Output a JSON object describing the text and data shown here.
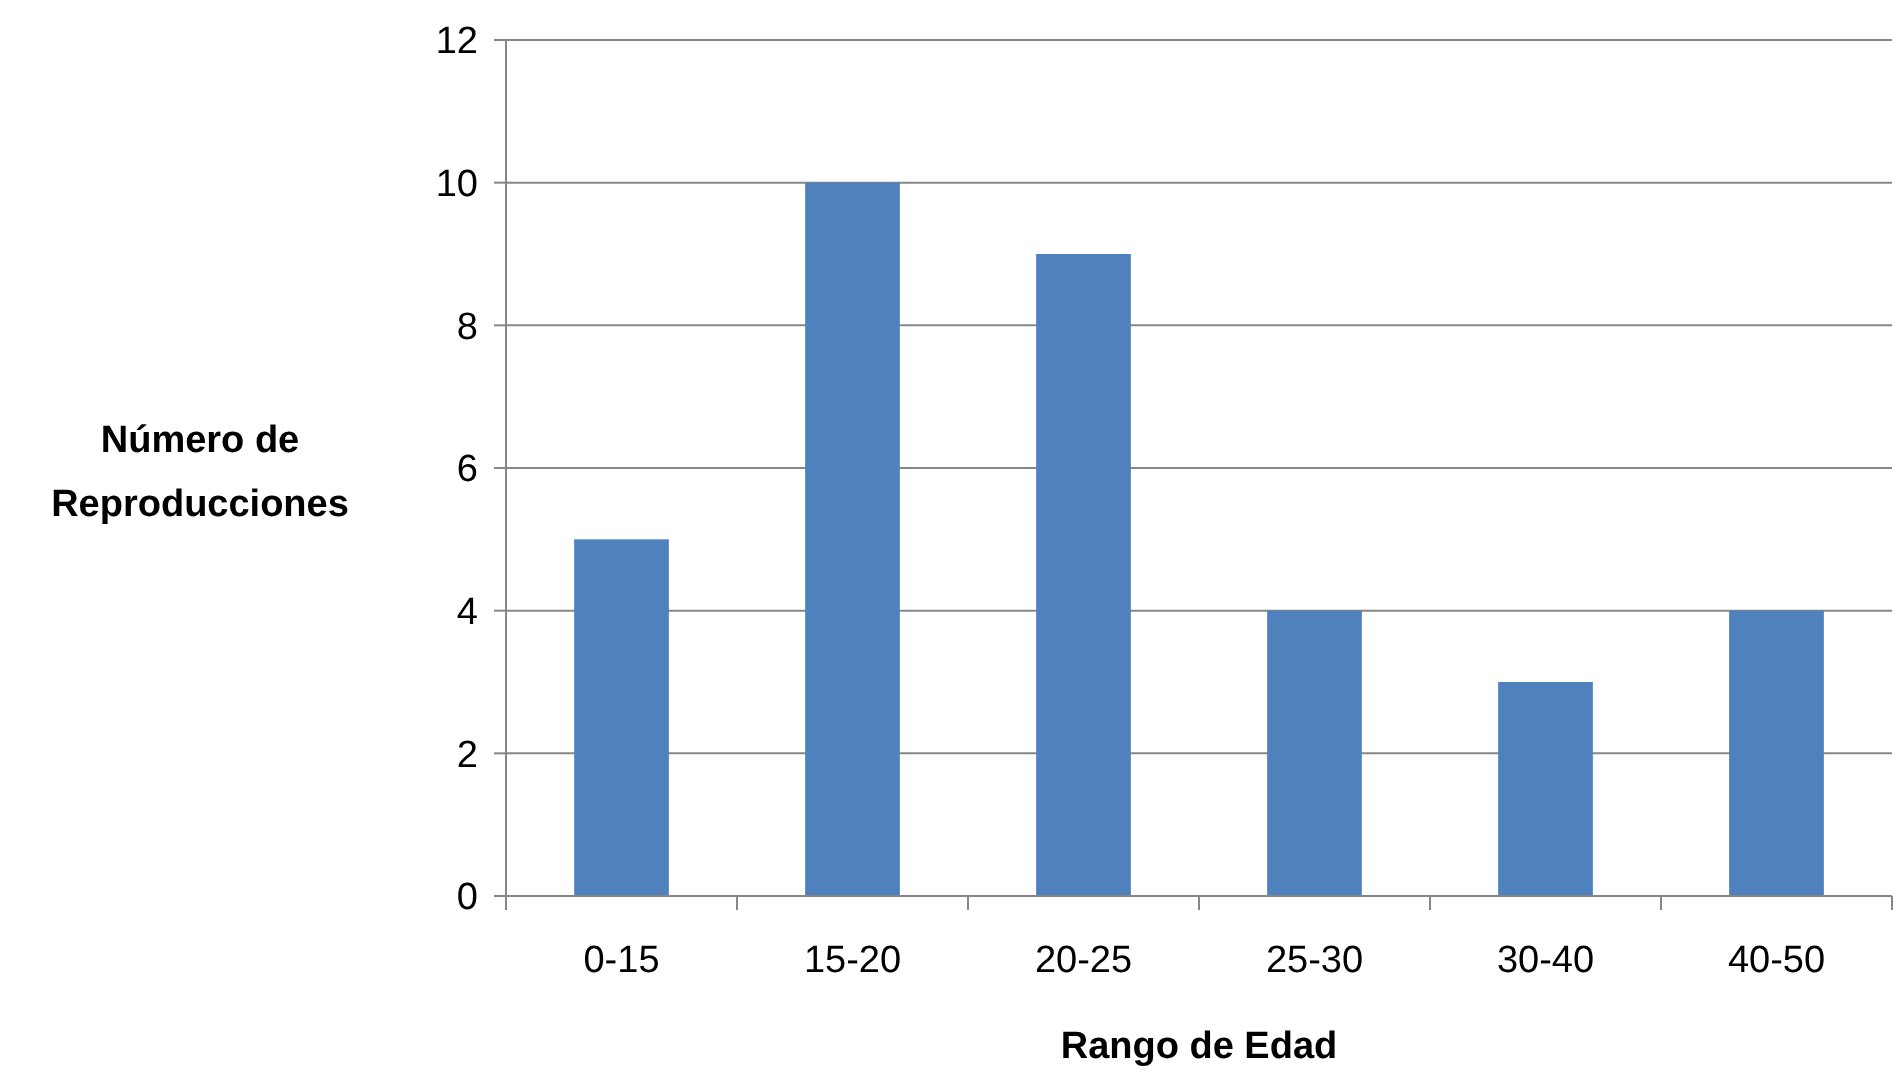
{
  "chart_data": {
    "type": "bar",
    "xlabel": "Rango de Edad",
    "ylabel": "Número de Reproducciones",
    "categories": [
      "0-15",
      "15-20",
      "20-25",
      "25-30",
      "30-40",
      "40-50"
    ],
    "values": [
      5,
      10,
      9,
      4,
      3,
      4
    ],
    "color": "#4f81bd",
    "ylim": [
      0,
      12
    ],
    "yticks": [
      0,
      2,
      4,
      6,
      8,
      10,
      12
    ],
    "grid": "y"
  }
}
